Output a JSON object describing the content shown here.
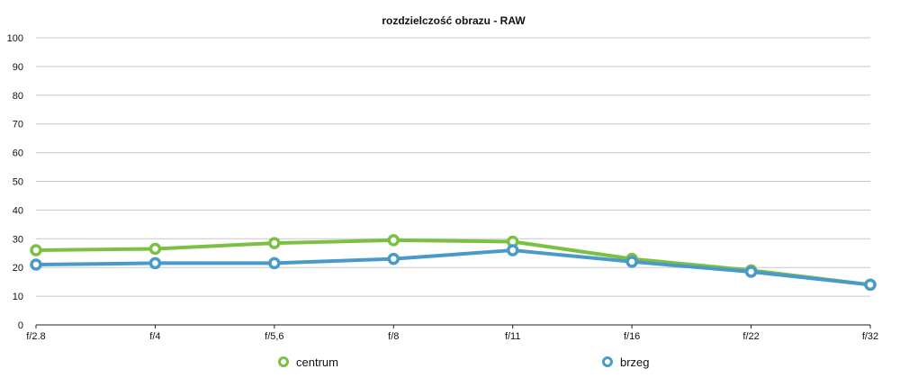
{
  "chart_data": {
    "type": "line",
    "title": "rozdzielczość obrazu - RAW",
    "xlabel": "",
    "ylabel": "",
    "categories": [
      "f/2.8",
      "f/4",
      "f/5,6",
      "f/8",
      "f/11",
      "f/16",
      "f/22",
      "f/32"
    ],
    "ylim": [
      0,
      100
    ],
    "yticks": [
      "0",
      "10",
      "20",
      "30",
      "40",
      "50",
      "60",
      "70",
      "80",
      "90",
      "100"
    ],
    "grid": true,
    "legend_position": "bottom",
    "series": [
      {
        "name": "centrum",
        "color": "#7ac143",
        "values": [
          26,
          26.5,
          28.5,
          29.5,
          29,
          23,
          19,
          14
        ]
      },
      {
        "name": "brzeg",
        "color": "#4a9ac9",
        "values": [
          21,
          21.5,
          21.5,
          23,
          26,
          22,
          18.5,
          14
        ]
      }
    ]
  }
}
